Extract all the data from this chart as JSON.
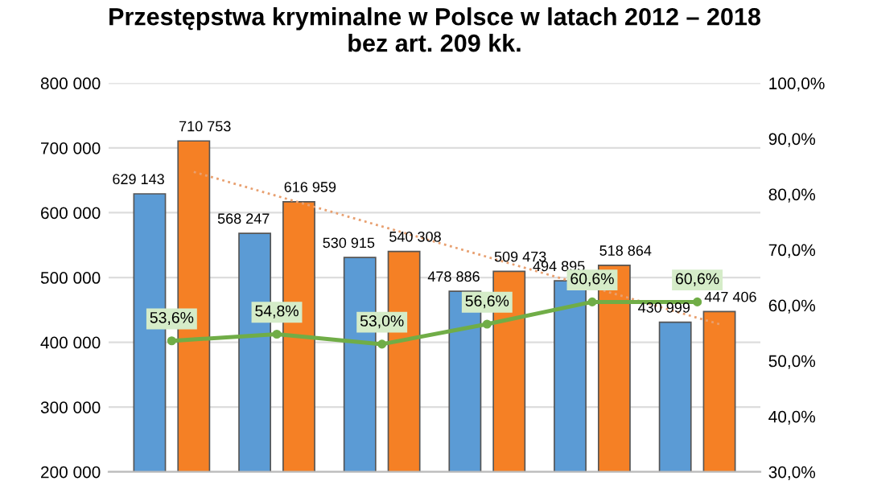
{
  "chart_data": {
    "type": "bar",
    "title": "Przestępstwa kryminalne w Polsce w latach 2012 – 2018\nbez art. 209 kk.",
    "categories": [
      null,
      null,
      null,
      null,
      null,
      null
    ],
    "series": [
      {
        "color": "#5b9bd5",
        "values": [
          629143,
          568247,
          530915,
          478886,
          494895,
          430999
        ],
        "value_labels": [
          "629 143",
          "568 247",
          "530 915",
          "478 886",
          "494 895",
          "430 999"
        ]
      },
      {
        "color": "#f58025",
        "values": [
          710753,
          616959,
          540308,
          509473,
          518864,
          447406
        ],
        "value_labels": [
          "710 753",
          "616 959",
          "540 308",
          "509 473",
          "518 864",
          "447 406"
        ]
      },
      {
        "type": "line",
        "color": "#e8a070",
        "line_style": "dotted",
        "marker": "none",
        "values": [
          663000,
          616000,
          569000,
          522000,
          475000,
          428000
        ]
      },
      {
        "type": "line",
        "axis": "y2",
        "color": "#70ad47",
        "line_style": "solid",
        "marker": "circle",
        "values": [
          53.6,
          54.8,
          53.0,
          56.6,
          60.6,
          60.6
        ],
        "value_labels": [
          "53,6%",
          "54,8%",
          "53,0%",
          "56,6%",
          "60,6%",
          "60,6%"
        ]
      }
    ],
    "ylim": [
      200000,
      800000
    ],
    "yticks": [
      {
        "value": 200000,
        "label": "200 000"
      },
      {
        "value": 300000,
        "label": "300 000"
      },
      {
        "value": 400000,
        "label": "400 000"
      },
      {
        "value": 500000,
        "label": "500 000"
      },
      {
        "value": 600000,
        "label": "600 000"
      },
      {
        "value": 700000,
        "label": "700 000"
      },
      {
        "value": 800000,
        "label": "800 000"
      }
    ],
    "y2lim": [
      30,
      100
    ],
    "y2ticks": [
      {
        "value": 30,
        "label": "30,0%"
      },
      {
        "value": 40,
        "label": "40,0%"
      },
      {
        "value": 50,
        "label": "50,0%"
      },
      {
        "value": 60,
        "label": "60,0%"
      },
      {
        "value": 70,
        "label": "70,0%"
      },
      {
        "value": 80,
        "label": "80,0%"
      },
      {
        "value": 90,
        "label": "90,0%"
      },
      {
        "value": 100,
        "label": "100,0%"
      }
    ],
    "grid": "y",
    "legend": false
  }
}
